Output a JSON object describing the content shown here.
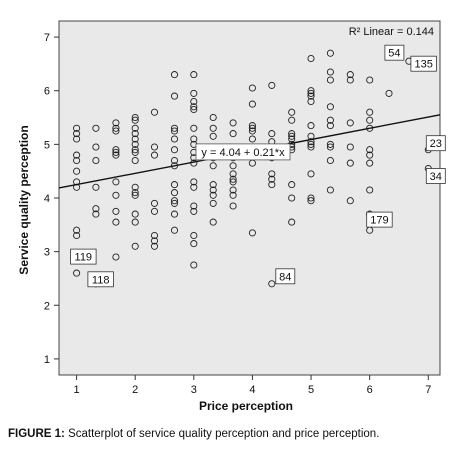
{
  "chart_data": {
    "type": "scatter",
    "xlabel": "Price perception",
    "ylabel": "Service quality perception",
    "xlim": [
      0.7,
      7.2
    ],
    "ylim": [
      0.7,
      7.3
    ],
    "x_ticks": [
      1,
      2,
      3,
      4,
      5,
      6,
      7
    ],
    "y_ticks": [
      1,
      2,
      3,
      4,
      5,
      6,
      7
    ],
    "grid": false,
    "background_color": "#e9e9e9",
    "fit_line": {
      "equation": "y = 4.04 + 0.21*x",
      "intercept": 4.04,
      "slope": 0.21,
      "r2_label": "R² Linear = 0.144"
    },
    "points": [
      [
        1,
        5.3
      ],
      [
        1,
        5.2
      ],
      [
        1,
        5.1
      ],
      [
        1,
        4.8
      ],
      [
        1,
        4.7
      ],
      [
        1,
        4.5
      ],
      [
        1,
        4.3
      ],
      [
        1,
        4.2
      ],
      [
        1,
        3.4
      ],
      [
        1,
        3.3
      ],
      [
        1,
        2.6
      ],
      [
        1.33,
        5.3
      ],
      [
        1.33,
        4.95
      ],
      [
        1.33,
        4.7
      ],
      [
        1.33,
        4.2
      ],
      [
        1.33,
        3.8
      ],
      [
        1.33,
        3.7
      ],
      [
        1.33,
        2.4
      ],
      [
        1.67,
        5.4
      ],
      [
        1.67,
        5.3
      ],
      [
        1.67,
        5.25
      ],
      [
        1.67,
        4.9
      ],
      [
        1.67,
        4.85
      ],
      [
        1.67,
        4.8
      ],
      [
        1.67,
        4.3
      ],
      [
        1.67,
        4.05
      ],
      [
        1.67,
        3.75
      ],
      [
        1.67,
        3.55
      ],
      [
        1.67,
        2.9
      ],
      [
        2,
        5.5
      ],
      [
        2,
        5.45
      ],
      [
        2,
        5.3
      ],
      [
        2,
        5.2
      ],
      [
        2,
        5.1
      ],
      [
        2,
        5.0
      ],
      [
        2,
        4.9
      ],
      [
        2,
        4.85
      ],
      [
        2,
        4.7
      ],
      [
        2,
        4.2
      ],
      [
        2,
        4.1
      ],
      [
        2,
        4.05
      ],
      [
        2,
        3.7
      ],
      [
        2,
        3.55
      ],
      [
        2,
        3.1
      ],
      [
        2.33,
        5.6
      ],
      [
        2.33,
        4.95
      ],
      [
        2.33,
        4.8
      ],
      [
        2.33,
        3.9
      ],
      [
        2.33,
        3.75
      ],
      [
        2.33,
        3.3
      ],
      [
        2.33,
        3.2
      ],
      [
        2.33,
        3.1
      ],
      [
        2.67,
        6.3
      ],
      [
        2.67,
        5.9
      ],
      [
        2.67,
        5.3
      ],
      [
        2.67,
        5.25
      ],
      [
        2.67,
        5.1
      ],
      [
        2.67,
        4.9
      ],
      [
        2.67,
        4.7
      ],
      [
        2.67,
        4.6
      ],
      [
        2.67,
        4.25
      ],
      [
        2.67,
        4.1
      ],
      [
        2.67,
        3.95
      ],
      [
        2.67,
        3.9
      ],
      [
        2.67,
        3.7
      ],
      [
        2.67,
        3.4
      ],
      [
        3,
        6.3
      ],
      [
        3,
        5.95
      ],
      [
        3,
        5.8
      ],
      [
        3,
        5.7
      ],
      [
        3,
        5.65
      ],
      [
        3,
        5.3
      ],
      [
        3,
        5.1
      ],
      [
        3,
        5.0
      ],
      [
        3,
        4.85
      ],
      [
        3,
        4.75
      ],
      [
        3,
        4.65
      ],
      [
        3,
        4.3
      ],
      [
        3,
        4.2
      ],
      [
        3,
        3.85
      ],
      [
        3,
        3.75
      ],
      [
        3,
        3.3
      ],
      [
        3,
        3.15
      ],
      [
        3,
        2.75
      ],
      [
        3.33,
        5.5
      ],
      [
        3.33,
        5.3
      ],
      [
        3.33,
        5.15
      ],
      [
        3.33,
        4.95
      ],
      [
        3.33,
        4.75
      ],
      [
        3.33,
        4.6
      ],
      [
        3.33,
        4.25
      ],
      [
        3.33,
        4.15
      ],
      [
        3.33,
        4.05
      ],
      [
        3.33,
        3.9
      ],
      [
        3.33,
        3.55
      ],
      [
        3.67,
        5.4
      ],
      [
        3.67,
        5.2
      ],
      [
        3.67,
        4.9
      ],
      [
        3.67,
        4.75
      ],
      [
        3.67,
        4.6
      ],
      [
        3.67,
        4.45
      ],
      [
        3.67,
        4.35
      ],
      [
        3.67,
        4.3
      ],
      [
        3.67,
        4.15
      ],
      [
        3.67,
        4.05
      ],
      [
        3.67,
        3.85
      ],
      [
        4,
        6.05
      ],
      [
        4,
        5.75
      ],
      [
        4,
        5.35
      ],
      [
        4,
        5.3
      ],
      [
        4,
        5.25
      ],
      [
        4,
        5.1
      ],
      [
        4,
        4.9
      ],
      [
        4,
        4.85
      ],
      [
        4,
        4.65
      ],
      [
        4,
        3.35
      ],
      [
        4.33,
        6.1
      ],
      [
        4.33,
        5.2
      ],
      [
        4.33,
        5.05
      ],
      [
        4.33,
        4.75
      ],
      [
        4.33,
        4.45
      ],
      [
        4.33,
        4.35
      ],
      [
        4.33,
        4.25
      ],
      [
        4.33,
        2.4
      ],
      [
        4.67,
        5.6
      ],
      [
        4.67,
        5.45
      ],
      [
        4.67,
        5.2
      ],
      [
        4.67,
        5.15
      ],
      [
        4.67,
        5.1
      ],
      [
        4.67,
        5.0
      ],
      [
        4.67,
        4.95
      ],
      [
        4.67,
        4.9
      ],
      [
        4.67,
        4.25
      ],
      [
        4.67,
        4.0
      ],
      [
        4.67,
        3.55
      ],
      [
        5,
        6.6
      ],
      [
        5,
        6.0
      ],
      [
        5,
        5.95
      ],
      [
        5,
        5.9
      ],
      [
        5,
        5.8
      ],
      [
        5,
        5.35
      ],
      [
        5,
        5.15
      ],
      [
        5,
        5.05
      ],
      [
        5,
        5.0
      ],
      [
        5,
        4.95
      ],
      [
        5,
        4.45
      ],
      [
        5,
        4.0
      ],
      [
        5,
        3.95
      ],
      [
        5.33,
        6.7
      ],
      [
        5.33,
        6.35
      ],
      [
        5.33,
        6.2
      ],
      [
        5.33,
        5.7
      ],
      [
        5.33,
        5.45
      ],
      [
        5.33,
        5.35
      ],
      [
        5.33,
        5.0
      ],
      [
        5.33,
        4.95
      ],
      [
        5.33,
        4.7
      ],
      [
        5.33,
        4.15
      ],
      [
        5.67,
        6.3
      ],
      [
        5.67,
        6.2
      ],
      [
        5.67,
        5.4
      ],
      [
        5.67,
        4.95
      ],
      [
        5.67,
        4.65
      ],
      [
        5.67,
        3.95
      ],
      [
        6,
        6.2
      ],
      [
        6,
        5.6
      ],
      [
        6,
        5.45
      ],
      [
        6,
        5.3
      ],
      [
        6,
        4.9
      ],
      [
        6,
        4.8
      ],
      [
        6,
        4.65
      ],
      [
        6,
        4.15
      ],
      [
        6,
        3.7
      ],
      [
        6,
        3.4
      ],
      [
        6.33,
        5.95
      ],
      [
        6.67,
        6.55
      ],
      [
        7,
        4.9
      ],
      [
        7,
        4.55
      ]
    ],
    "case_labels": [
      {
        "label": "54",
        "x": 6.67,
        "y": 6.55
      },
      {
        "label": "135",
        "x": 6.67,
        "y": 6.55
      },
      {
        "label": "23",
        "x": 7,
        "y": 4.9
      },
      {
        "label": "34",
        "x": 7,
        "y": 4.55
      },
      {
        "label": "179",
        "x": 6,
        "y": 3.7
      },
      {
        "label": "84",
        "x": 4.33,
        "y": 2.4
      },
      {
        "label": "119",
        "x": 1,
        "y": 2.6
      },
      {
        "label": "118",
        "x": 1.33,
        "y": 2.4
      }
    ]
  },
  "caption": {
    "figure_label": "FIGURE 1:",
    "text": " Scatterplot of service quality perception and price perception."
  }
}
